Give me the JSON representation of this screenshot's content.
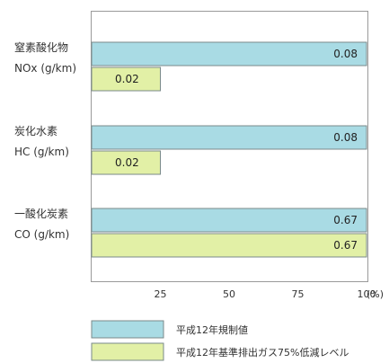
{
  "chart_data": {
    "type": "bar",
    "orientation": "horizontal",
    "categories": [
      {
        "name": "窒素酸化物",
        "unit": "NOx (g/km)"
      },
      {
        "name": "炭化水素",
        "unit": "HC (g/km)"
      },
      {
        "name": "一酸化炭素",
        "unit": "CO (g/km)"
      }
    ],
    "series": [
      {
        "name": "平成12年規制値",
        "percent": [
          100,
          100,
          100
        ],
        "labels": [
          "0.08",
          "0.08",
          "0.67"
        ],
        "color": "#a9dbe4"
      },
      {
        "name": "平成12年基準排出ガス75%低減レベル",
        "percent": [
          25,
          25,
          100
        ],
        "labels": [
          "0.02",
          "0.02",
          "0.67"
        ],
        "color": "#e2f0a6"
      }
    ],
    "xlim": [
      0,
      100
    ],
    "ticks": [
      "25",
      "50",
      "75",
      "100"
    ],
    "tick_values": [
      25,
      50,
      75,
      100
    ],
    "unit_label": "(%)",
    "grid": false,
    "legend_position": "bottom"
  }
}
